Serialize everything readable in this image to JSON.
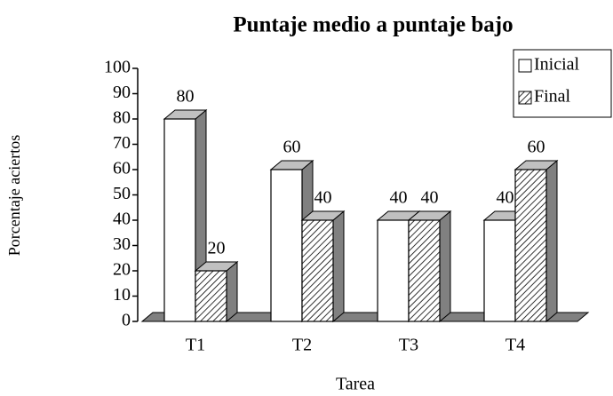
{
  "chart_data": {
    "type": "bar3d",
    "title": "Puntaje medio a puntaje bajo",
    "categories": [
      "T1",
      "T2",
      "T3",
      "T4"
    ],
    "series": [
      {
        "name": "Inicial",
        "color": "#ffffff",
        "hatch": false,
        "values": [
          80,
          60,
          40,
          40
        ]
      },
      {
        "name": "Final",
        "color": "#ffffff",
        "hatch": true,
        "values": [
          20,
          40,
          40,
          60
        ]
      }
    ],
    "ylim": [
      0,
      100
    ],
    "yticks": [
      0,
      10,
      20,
      30,
      40,
      50,
      60,
      70,
      80,
      90,
      100
    ],
    "ylabel": "Porcentaje aciertos",
    "xlabel": "Tarea",
    "grid": false,
    "legend": "top-right"
  }
}
